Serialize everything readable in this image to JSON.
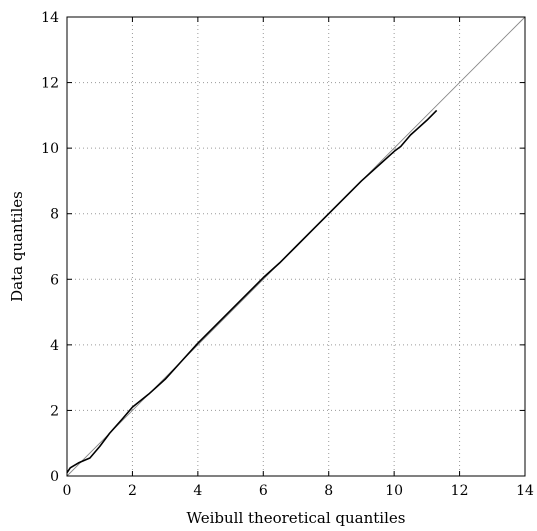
{
  "chart_data": {
    "type": "line",
    "title": "",
    "xlabel": "Weibull theoretical quantiles",
    "ylabel": "Data quantiles",
    "xlim": [
      0,
      14
    ],
    "ylim": [
      0,
      14
    ],
    "xticks": [
      "0",
      "2",
      "4",
      "6",
      "8",
      "10",
      "12",
      "14"
    ],
    "yticks": [
      "0",
      "2",
      "4",
      "6",
      "8",
      "10",
      "12",
      "14"
    ],
    "grid": true,
    "series": [
      {
        "role": "data",
        "color": "#000000",
        "x": [
          0.0,
          0.1,
          0.35,
          0.7,
          1.0,
          1.3,
          1.7,
          2.0,
          2.5,
          3.0,
          3.5,
          4.0,
          4.5,
          5.0,
          5.5,
          6.0,
          6.5,
          7.0,
          7.5,
          8.0,
          8.5,
          9.0,
          9.5,
          10.0,
          10.2,
          10.5,
          11.0,
          11.3
        ],
        "y": [
          0.1,
          0.25,
          0.4,
          0.55,
          0.9,
          1.3,
          1.75,
          2.1,
          2.5,
          2.95,
          3.5,
          4.05,
          4.55,
          5.05,
          5.55,
          6.05,
          6.5,
          7.0,
          7.5,
          8.0,
          8.5,
          9.0,
          9.45,
          9.9,
          10.05,
          10.4,
          10.85,
          11.15
        ]
      },
      {
        "role": "reference",
        "color": "#888888",
        "x": [
          0,
          14
        ],
        "y": [
          0,
          14
        ]
      }
    ]
  }
}
